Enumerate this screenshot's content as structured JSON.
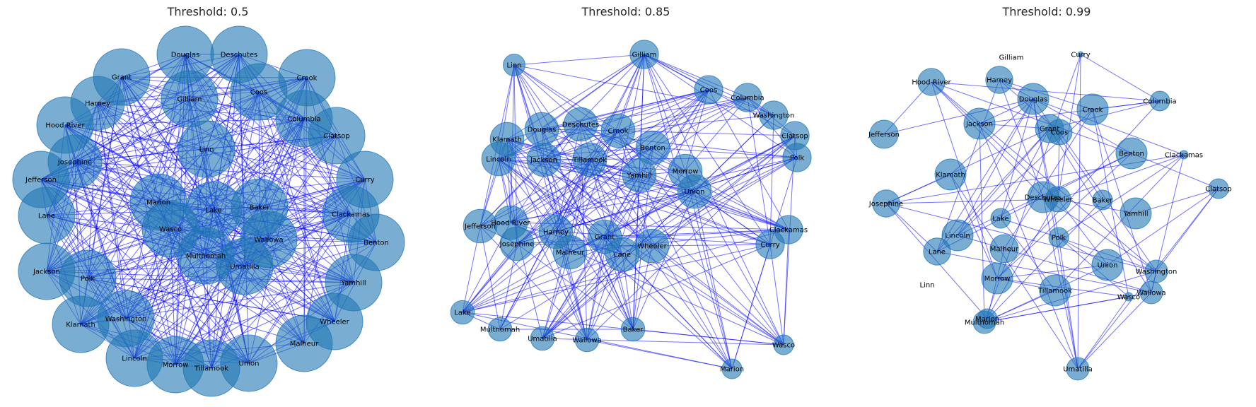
{
  "panels": [
    {
      "title": "Threshold: 0.5",
      "edge_color": "#0000ff",
      "node_color": "#1f77b4",
      "edge_fraction": 0.62,
      "nodes": [
        {
          "name": "Douglas",
          "size": 1.0
        },
        {
          "name": "Deschutes",
          "size": 1.0
        },
        {
          "name": "Grant",
          "size": 1.0
        },
        {
          "name": "Crook",
          "size": 1.0
        },
        {
          "name": "Harney",
          "size": 0.95
        },
        {
          "name": "Coos",
          "size": 1.0
        },
        {
          "name": "Gilliam",
          "size": 1.0
        },
        {
          "name": "Hood River",
          "size": 1.0
        },
        {
          "name": "Columbia",
          "size": 1.0
        },
        {
          "name": "Clatsop",
          "size": 1.0
        },
        {
          "name": "Linn",
          "size": 1.0
        },
        {
          "name": "Josephine",
          "size": 0.95
        },
        {
          "name": "Curry",
          "size": 1.0
        },
        {
          "name": "Jefferson",
          "size": 1.0
        },
        {
          "name": "Marion",
          "size": 1.0
        },
        {
          "name": "Lake",
          "size": 1.0
        },
        {
          "name": "Baker",
          "size": 1.0
        },
        {
          "name": "Lane",
          "size": 1.0
        },
        {
          "name": "Clackamas",
          "size": 1.0
        },
        {
          "name": "Wasco",
          "size": 1.0
        },
        {
          "name": "Wallowa",
          "size": 1.0
        },
        {
          "name": "Benton",
          "size": 1.0
        },
        {
          "name": "Multnomah",
          "size": 1.0
        },
        {
          "name": "Umatilla",
          "size": 1.0
        },
        {
          "name": "Jackson",
          "size": 1.0
        },
        {
          "name": "Polk",
          "size": 1.0
        },
        {
          "name": "Yamhill",
          "size": 1.0
        },
        {
          "name": "Washington",
          "size": 1.0
        },
        {
          "name": "Klamath",
          "size": 1.0
        },
        {
          "name": "Wheeler",
          "size": 1.0
        },
        {
          "name": "Malheur",
          "size": 1.0
        },
        {
          "name": "Lincoln",
          "size": 1.0
        },
        {
          "name": "Morrow",
          "size": 1.0
        },
        {
          "name": "Tillamook",
          "size": 1.0
        },
        {
          "name": "Union",
          "size": 1.0
        }
      ]
    },
    {
      "title": "Threshold: 0.85",
      "edge_color": "#0000ff",
      "node_color": "#1f77b4",
      "edge_fraction": 0.4,
      "nodes": [
        {
          "name": "Linn",
          "size": 0.55
        },
        {
          "name": "Gilliam",
          "size": 0.72
        },
        {
          "name": "Coos",
          "size": 0.72
        },
        {
          "name": "Columbia",
          "size": 0.72
        },
        {
          "name": "Washington",
          "size": 0.72
        },
        {
          "name": "Douglas",
          "size": 0.85
        },
        {
          "name": "Deschutes",
          "size": 0.85
        },
        {
          "name": "Crook",
          "size": 0.85
        },
        {
          "name": "Klamath",
          "size": 0.85
        },
        {
          "name": "Clatsop",
          "size": 0.72
        },
        {
          "name": "Benton",
          "size": 0.85
        },
        {
          "name": "Lincoln",
          "size": 0.85
        },
        {
          "name": "Jackson",
          "size": 0.85
        },
        {
          "name": "Tillamook",
          "size": 0.85
        },
        {
          "name": "Polk",
          "size": 0.72
        },
        {
          "name": "Yamhill",
          "size": 0.85
        },
        {
          "name": "Morrow",
          "size": 0.85
        },
        {
          "name": "Union",
          "size": 0.85
        },
        {
          "name": "Jefferson",
          "size": 0.85
        },
        {
          "name": "Hood River",
          "size": 0.85
        },
        {
          "name": "Clackamas",
          "size": 0.72
        },
        {
          "name": "Harney",
          "size": 0.85
        },
        {
          "name": "Grant",
          "size": 0.85
        },
        {
          "name": "Josephine",
          "size": 0.85
        },
        {
          "name": "Wheeler",
          "size": 0.85
        },
        {
          "name": "Curry",
          "size": 0.72
        },
        {
          "name": "Malheur",
          "size": 0.85
        },
        {
          "name": "Lane",
          "size": 0.85
        },
        {
          "name": "Lake",
          "size": 0.6
        },
        {
          "name": "Multnomah",
          "size": 0.6
        },
        {
          "name": "Umatilla",
          "size": 0.6
        },
        {
          "name": "Wallowa",
          "size": 0.6
        },
        {
          "name": "Baker",
          "size": 0.6
        },
        {
          "name": "Wasco",
          "size": 0.5
        },
        {
          "name": "Marion",
          "size": 0.5
        }
      ]
    },
    {
      "title": "Threshold: 0.99",
      "edge_color": "#0000ff",
      "node_color": "#1f77b4",
      "edge_fraction": 0.14,
      "nodes": [
        {
          "name": "Gilliam",
          "size": 0
        },
        {
          "name": "Curry",
          "size": 0.1
        },
        {
          "name": "Hood River",
          "size": 0.48
        },
        {
          "name": "Harney",
          "size": 0.48
        },
        {
          "name": "Douglas",
          "size": 0.55
        },
        {
          "name": "Crook",
          "size": 0.55
        },
        {
          "name": "Columbia",
          "size": 0.35
        },
        {
          "name": "Jackson",
          "size": 0.55
        },
        {
          "name": "Grant",
          "size": 0.5
        },
        {
          "name": "Coos",
          "size": 0.45
        },
        {
          "name": "Jefferson",
          "size": 0.5
        },
        {
          "name": "Benton",
          "size": 0.55
        },
        {
          "name": "Clackamas",
          "size": 0.15
        },
        {
          "name": "Klamath",
          "size": 0.55
        },
        {
          "name": "Clatsop",
          "size": 0.35
        },
        {
          "name": "Deschutes",
          "size": 0.55
        },
        {
          "name": "Wheeler",
          "size": 0.45
        },
        {
          "name": "Baker",
          "size": 0.35
        },
        {
          "name": "Josephine",
          "size": 0.48
        },
        {
          "name": "Yamhill",
          "size": 0.55
        },
        {
          "name": "Lake",
          "size": 0.35
        },
        {
          "name": "Lincoln",
          "size": 0.55
        },
        {
          "name": "Polk",
          "size": 0.35
        },
        {
          "name": "Malheur",
          "size": 0.5
        },
        {
          "name": "Lane",
          "size": 0.48
        },
        {
          "name": "Union",
          "size": 0.55
        },
        {
          "name": "Washington",
          "size": 0.4
        },
        {
          "name": "Morrow",
          "size": 0.55
        },
        {
          "name": "Tillamook",
          "size": 0.55
        },
        {
          "name": "Linn",
          "size": 0
        },
        {
          "name": "Wallowa",
          "size": 0.4
        },
        {
          "name": "Wasco",
          "size": 0.15
        },
        {
          "name": "Marion",
          "size": 0.35
        },
        {
          "name": "Multnomah",
          "size": 0.4
        },
        {
          "name": "Umatilla",
          "size": 0.4
        }
      ]
    }
  ]
}
